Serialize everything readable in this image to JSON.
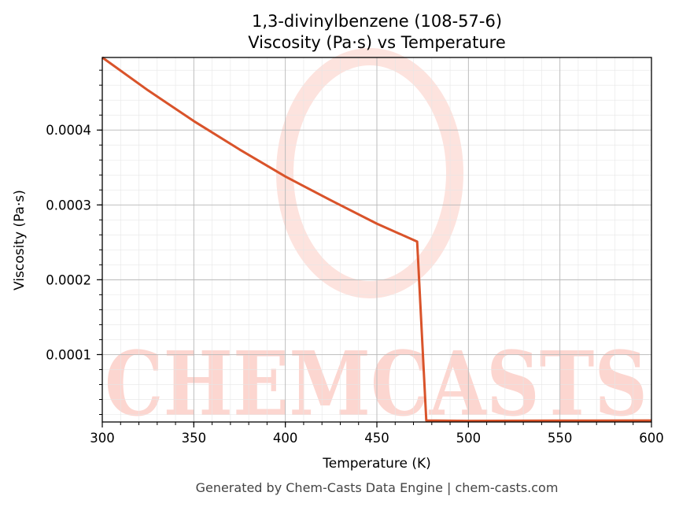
{
  "chart_data": {
    "type": "line",
    "title": "1,3-divinylbenzene (108-57-6)",
    "subtitle": "Viscosity (Pa·s) vs Temperature",
    "xlabel": "Temperature (K)",
    "ylabel": "Viscosity (Pa·s)",
    "xlim": [
      300,
      600
    ],
    "ylim": [
      1e-05,
      0.000497
    ],
    "xticks": [
      300,
      350,
      400,
      450,
      500,
      550,
      600
    ],
    "xtick_labels": [
      "300",
      "350",
      "400",
      "450",
      "500",
      "550",
      "600"
    ],
    "yticks": [
      0.0001,
      0.0002,
      0.0003,
      0.0004
    ],
    "ytick_labels": [
      "0.0001",
      "0.0002",
      "0.0003",
      "0.0004"
    ],
    "grid": true,
    "series": [
      {
        "color": "#d9532a",
        "x": [
          300,
          325,
          350,
          375,
          400,
          425,
          450,
          472,
          477,
          500,
          550,
          600
        ],
        "y": [
          0.000497,
          0.000453,
          0.000412,
          0.000374,
          0.000338,
          0.000306,
          0.000275,
          0.000251,
          1.2e-05,
          1.15e-05,
          1.18e-05,
          1.2e-05
        ]
      }
    ]
  },
  "watermark": {
    "text": "CHEMCASTS"
  },
  "footer": "Generated by Chem-Casts Data Engine | chem-casts.com"
}
